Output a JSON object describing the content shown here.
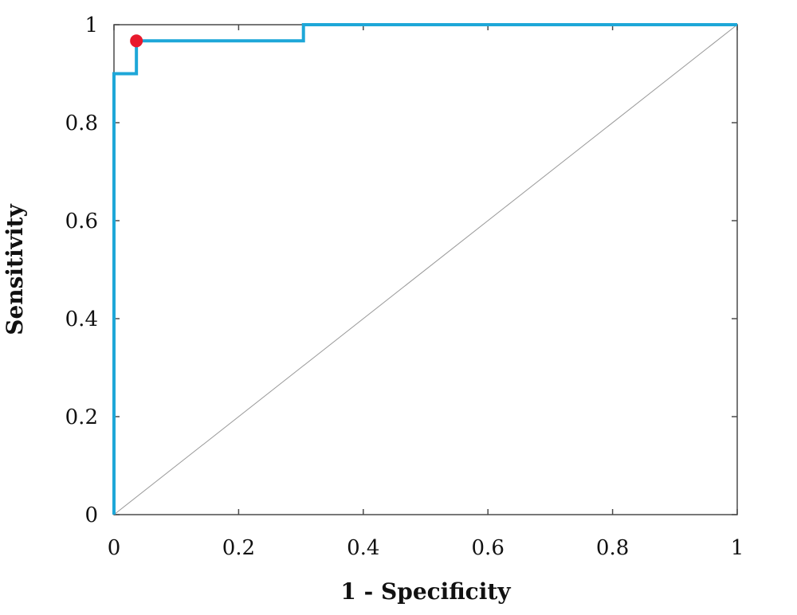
{
  "chart_data": {
    "type": "line",
    "title": "",
    "xlabel": "1 - Specificity",
    "ylabel": "Sensitivity",
    "xlim": [
      0,
      1
    ],
    "ylim": [
      0,
      1
    ],
    "xticks": [
      0,
      0.2,
      0.4,
      0.6,
      0.8,
      1
    ],
    "yticks": [
      0,
      0.2,
      0.4,
      0.6,
      0.8,
      1
    ],
    "xtick_labels": [
      "0",
      "0.2",
      "0.4",
      "0.6",
      "0.8",
      "1"
    ],
    "ytick_labels": [
      "0",
      "0.2",
      "0.4",
      "0.6",
      "0.8",
      "1"
    ],
    "grid": false,
    "series": [
      {
        "style": "step",
        "color": "#1ea7d8",
        "x": [
          0,
          0,
          0.036,
          0.036,
          0.304,
          0.304,
          1
        ],
        "y": [
          0,
          0.9,
          0.9,
          0.967,
          0.967,
          1,
          1
        ]
      }
    ],
    "highlight_point": {
      "x": 0.036,
      "y": 0.967,
      "color": "#e8192c"
    },
    "diagonal_reference": {
      "color": "#999999"
    }
  }
}
